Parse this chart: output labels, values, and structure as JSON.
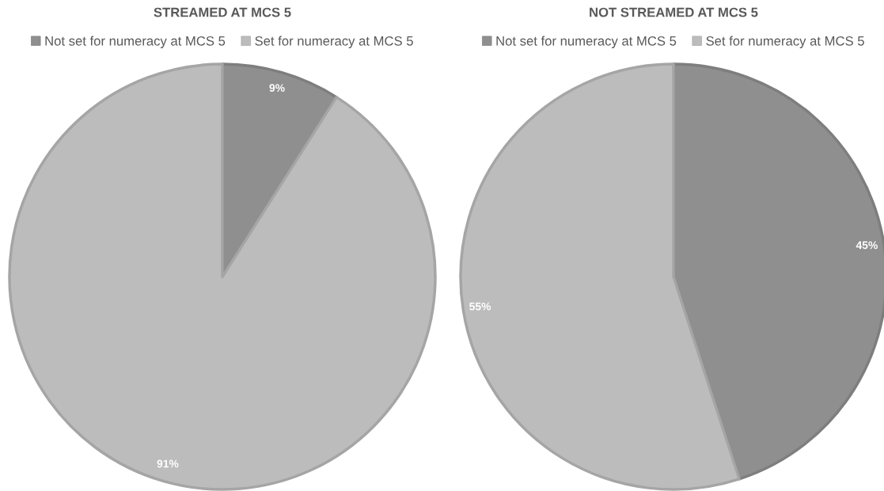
{
  "chart_data": [
    {
      "type": "pie",
      "title": "STREAMED AT MCS 5",
      "categories": [
        "Not set for numeracy at MCS 5",
        "Set for numeracy at MCS 5"
      ],
      "values": [
        9,
        91
      ],
      "colors": [
        "#8f8f8f",
        "#bcbcbc"
      ],
      "value_labels": [
        "9%",
        "91%"
      ],
      "legend": "top"
    },
    {
      "type": "pie",
      "title": "NOT STREAMED AT MCS 5",
      "categories": [
        "Not set for numeracy at MCS 5",
        "Set for numeracy at MCS 5"
      ],
      "values": [
        45,
        55
      ],
      "colors": [
        "#8f8f8f",
        "#bcbcbc"
      ],
      "value_labels": [
        "45%",
        "55%"
      ],
      "legend": "top"
    }
  ]
}
